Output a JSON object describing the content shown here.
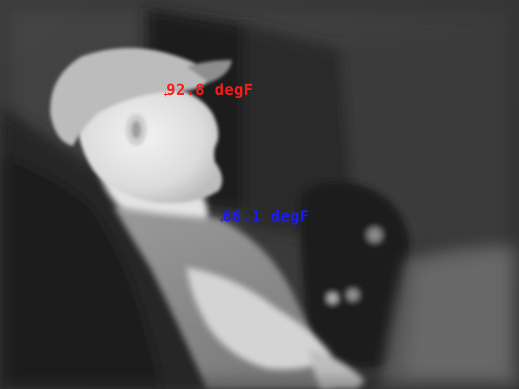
{
  "readouts": {
    "max": {
      "text": "92.8 degF",
      "color": "#ff1a1a"
    },
    "min": {
      "text": "66.1 degF",
      "color": "#1a1aff"
    }
  }
}
